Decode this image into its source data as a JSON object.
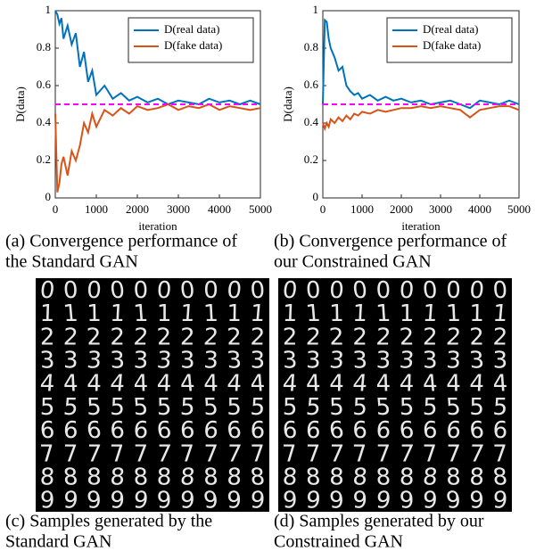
{
  "chart_data": [
    {
      "type": "line",
      "xlabel": "iteration",
      "ylabel": "D(data)",
      "x": [
        0,
        50,
        100,
        150,
        200,
        300,
        400,
        500,
        600,
        700,
        800,
        900,
        1000,
        1200,
        1400,
        1600,
        1800,
        2000,
        2250,
        2500,
        2750,
        3000,
        3250,
        3500,
        3750,
        4000,
        4250,
        4500,
        4750,
        5000
      ],
      "series": [
        {
          "name": "D(real data)",
          "color": "#0072bd",
          "values": [
            1.0,
            0.98,
            0.93,
            0.96,
            0.85,
            0.92,
            0.82,
            0.88,
            0.7,
            0.78,
            0.62,
            0.68,
            0.55,
            0.6,
            0.53,
            0.56,
            0.52,
            0.54,
            0.51,
            0.53,
            0.5,
            0.52,
            0.51,
            0.5,
            0.53,
            0.51,
            0.52,
            0.5,
            0.52,
            0.5
          ]
        },
        {
          "name": "D(fake data)",
          "color": "#d95319",
          "values": [
            0.45,
            0.03,
            0.08,
            0.18,
            0.22,
            0.12,
            0.25,
            0.2,
            0.28,
            0.4,
            0.35,
            0.45,
            0.38,
            0.47,
            0.44,
            0.48,
            0.45,
            0.49,
            0.47,
            0.48,
            0.5,
            0.47,
            0.49,
            0.48,
            0.5,
            0.47,
            0.49,
            0.48,
            0.47,
            0.48
          ]
        }
      ],
      "hline": {
        "value": 0.5,
        "color": "#ff00ff"
      },
      "xlim": [
        0,
        5000
      ],
      "xticks": [
        0,
        1000,
        2000,
        3000,
        4000,
        5000
      ],
      "ylim": [
        0,
        1
      ],
      "yticks": [
        0,
        0.2,
        0.4,
        0.6,
        0.8,
        1
      ],
      "legend": "upper right"
    },
    {
      "type": "line",
      "xlabel": "iteration",
      "ylabel": "D(data)",
      "x": [
        0,
        50,
        100,
        150,
        200,
        300,
        400,
        500,
        600,
        700,
        800,
        900,
        1000,
        1200,
        1400,
        1600,
        1800,
        2000,
        2250,
        2500,
        2750,
        3000,
        3250,
        3500,
        3750,
        4000,
        4250,
        4500,
        4750,
        5000
      ],
      "series": [
        {
          "name": "D(real data)",
          "color": "#0072bd",
          "values": [
            0.5,
            0.95,
            0.94,
            0.85,
            0.8,
            0.75,
            0.68,
            0.7,
            0.6,
            0.57,
            0.55,
            0.56,
            0.53,
            0.55,
            0.52,
            0.54,
            0.52,
            0.53,
            0.51,
            0.52,
            0.5,
            0.51,
            0.52,
            0.5,
            0.48,
            0.52,
            0.51,
            0.5,
            0.52,
            0.5
          ]
        },
        {
          "name": "D(fake data)",
          "color": "#d95319",
          "values": [
            0.4,
            0.37,
            0.4,
            0.38,
            0.42,
            0.4,
            0.43,
            0.41,
            0.44,
            0.42,
            0.45,
            0.44,
            0.46,
            0.45,
            0.47,
            0.46,
            0.47,
            0.48,
            0.48,
            0.49,
            0.48,
            0.49,
            0.48,
            0.47,
            0.43,
            0.47,
            0.48,
            0.49,
            0.49,
            0.47
          ]
        }
      ],
      "hline": {
        "value": 0.5,
        "color": "#ff00ff"
      },
      "xlim": [
        0,
        5000
      ],
      "xticks": [
        0,
        1000,
        2000,
        3000,
        4000,
        5000
      ],
      "ylim": [
        0,
        1
      ],
      "yticks": [
        0,
        0.2,
        0.4,
        0.6,
        0.8,
        1
      ],
      "legend": "upper right"
    }
  ],
  "grids": [
    {
      "rows": [
        "0",
        "1",
        "2",
        "3",
        "4",
        "5",
        "6",
        "7",
        "8",
        "9"
      ]
    },
    {
      "rows": [
        "0",
        "1",
        "2",
        "3",
        "4",
        "5",
        "6",
        "7",
        "8",
        "9"
      ]
    }
  ],
  "captions": [
    {
      "lines": [
        "(a)  Convergence performance of",
        "the Standard GAN"
      ]
    },
    {
      "lines": [
        "(b)  Convergence performance of",
        "our Constrained GAN"
      ]
    },
    {
      "lines": [
        "(c)  Samples generated by the",
        "Standard GAN"
      ]
    },
    {
      "lines": [
        "(d)  Samples generated by our",
        "Constrained GAN"
      ]
    }
  ]
}
